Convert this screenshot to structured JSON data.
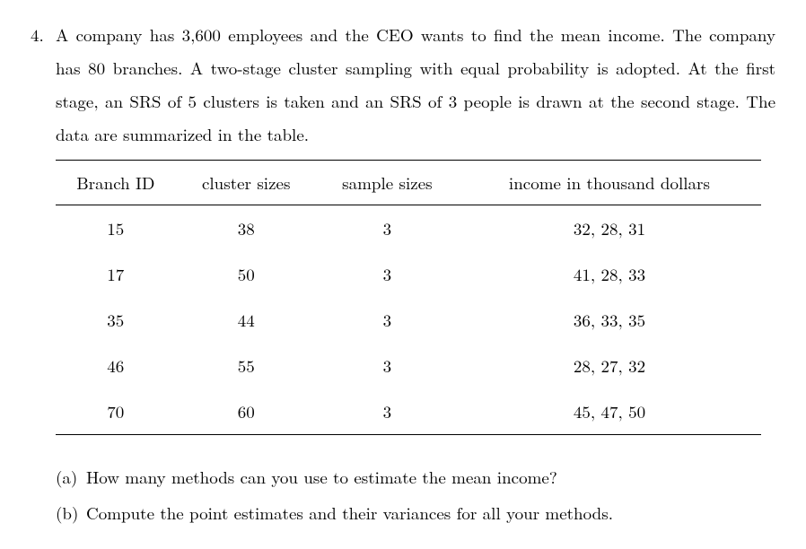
{
  "problem": {
    "number": "4.",
    "stem": "A company has 3,600 employees and the CEO wants to find the mean income. The company has 80 branches. A two-stage cluster sampling with equal probability is adopted. At the first stage, an SRS of 5 clusters is taken and an SRS of 3 people is drawn at the second stage. The data are summarized in the table."
  },
  "table": {
    "columns": [
      "Branch ID",
      "cluster sizes",
      "sample sizes",
      "income in thousand dollars"
    ],
    "rows": [
      [
        "15",
        "38",
        "3",
        "32, 28, 31"
      ],
      [
        "17",
        "50",
        "3",
        "41, 28, 33"
      ],
      [
        "35",
        "44",
        "3",
        "36, 33, 35"
      ],
      [
        "46",
        "55",
        "3",
        "28, 27, 32"
      ],
      [
        "70",
        "60",
        "3",
        "45, 47, 50"
      ]
    ],
    "border_color": "#000000",
    "font_size": 19
  },
  "parts": {
    "a": {
      "label": "(a)",
      "text": "How many methods can you use to estimate the mean income?"
    },
    "b": {
      "label": "(b)",
      "text": "Compute the point estimates and their variances for all your methods."
    }
  },
  "style": {
    "text_color": "#000000",
    "background_color": "#ffffff",
    "font_family": "Computer Modern",
    "base_font_size": 19,
    "line_height": 1.95
  }
}
